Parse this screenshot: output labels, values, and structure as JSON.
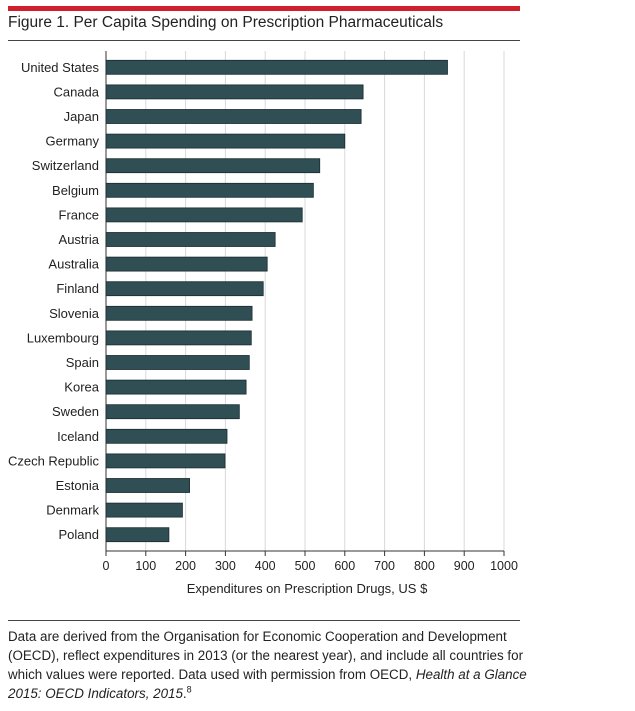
{
  "figure": {
    "title": "Figure 1. Per Capita Spending on Prescription Pharmaceuticals",
    "accent_color": "#d0202e",
    "bar_color": "#2f4f55"
  },
  "chart_data": {
    "type": "bar",
    "orientation": "horizontal",
    "categories": [
      "United States",
      "Canada",
      "Japan",
      "Germany",
      "Switzerland",
      "Belgium",
      "France",
      "Austria",
      "Australia",
      "Finland",
      "Slovenia",
      "Luxembourg",
      "Spain",
      "Korea",
      "Sweden",
      "Iceland",
      "Czech Republic",
      "Estonia",
      "Denmark",
      "Poland"
    ],
    "values": [
      858,
      646,
      641,
      600,
      537,
      521,
      493,
      425,
      405,
      395,
      367,
      365,
      360,
      352,
      335,
      304,
      299,
      210,
      192,
      158
    ],
    "title": "",
    "xlabel": "Expenditures on Prescription Drugs, US $",
    "ylabel": "",
    "xlim": [
      0,
      1000
    ],
    "xticks": [
      "0",
      "100",
      "200",
      "300",
      "400",
      "500",
      "600",
      "700",
      "800",
      "900",
      "1000"
    ],
    "grid": "vertical"
  },
  "note": {
    "text_part1": "Data are derived from the Organisation for Economic Cooperation and Development (OECD), reflect expenditures in 2013 (or the nearest year), and include all countries for which values were reported. Data used with permission from OECD, ",
    "source_italic": "Health at a Glance 2015: OECD Indicators, 2015",
    "text_part2": ".",
    "ref": "8"
  }
}
